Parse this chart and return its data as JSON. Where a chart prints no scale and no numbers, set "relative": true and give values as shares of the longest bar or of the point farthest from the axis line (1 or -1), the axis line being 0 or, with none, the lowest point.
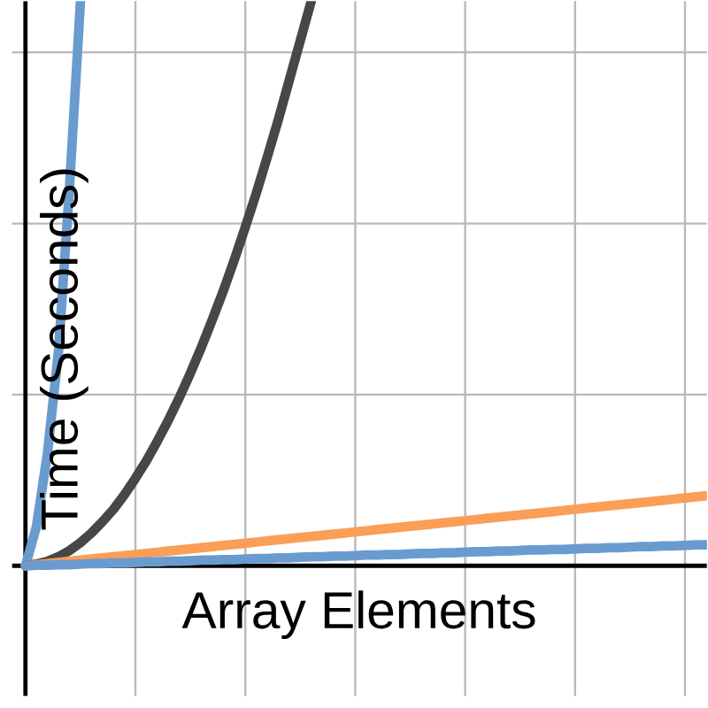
{
  "chart_data": {
    "type": "line",
    "relative": true,
    "xlabel": "Array Elements",
    "ylabel": "Time (Seconds)",
    "grid": true,
    "marker": "none",
    "line_style": "solid",
    "categories": [
      null,
      null,
      null,
      null,
      null,
      null,
      null,
      null,
      null,
      null,
      null,
      null,
      null,
      null,
      null,
      null,
      null,
      null,
      null,
      null,
      null,
      null,
      null,
      null,
      null,
      null,
      null,
      null,
      null,
      null,
      null,
      null,
      null,
      null,
      null,
      null,
      null,
      null,
      null,
      null,
      null,
      null,
      null,
      null,
      null,
      null,
      null,
      null,
      null,
      null,
      null,
      null,
      null,
      null,
      null,
      null,
      null,
      null,
      null,
      null,
      null,
      null,
      null
    ],
    "series": [
      {
        "color": "#6a9bcf",
        "values": [
          0,
          0.07,
          0.2,
          0.38,
          0.67,
          1,
          null,
          null,
          null,
          null,
          null,
          null,
          null,
          null,
          null,
          null,
          null,
          null,
          null,
          null,
          null,
          null,
          null,
          null,
          null,
          null,
          null,
          null,
          null,
          null,
          null,
          null,
          null,
          null,
          null,
          null,
          null,
          null,
          null,
          null,
          null,
          null,
          null,
          null,
          null,
          null,
          null,
          null,
          null,
          null,
          null,
          null,
          null,
          null,
          null,
          null,
          null,
          null,
          null,
          null,
          null,
          null,
          null
        ]
      },
      {
        "color": "#474747",
        "values": [
          0,
          0.003,
          0.008,
          0.016,
          0.027,
          0.041,
          0.058,
          0.078,
          0.1,
          0.126,
          0.155,
          0.186,
          0.221,
          0.258,
          0.298,
          0.341,
          0.387,
          0.436,
          0.487,
          0.542,
          0.6,
          0.66,
          0.724,
          0.79,
          0.86,
          0.93,
          1,
          null,
          null,
          null,
          null,
          null,
          null,
          null,
          null,
          null,
          null,
          null,
          null,
          null,
          null,
          null,
          null,
          null,
          null,
          null,
          null,
          null,
          null,
          null,
          null,
          null,
          null,
          null,
          null,
          null,
          null,
          null,
          null,
          null,
          null,
          null,
          null
        ]
      },
      {
        "color": "#fa9e58",
        "values": [
          0,
          0.002,
          0.004,
          0.006,
          0.008,
          0.01,
          0.012,
          0.014,
          0.016,
          0.018,
          0.02,
          0.022,
          0.024,
          0.026,
          0.028,
          0.03,
          0.032,
          0.034,
          0.036,
          0.038,
          0.04,
          0.042,
          0.044,
          0.046,
          0.048,
          0.05,
          0.052,
          0.054,
          0.056,
          0.058,
          0.06,
          0.062,
          0.064,
          0.066,
          0.068,
          0.07,
          0.072,
          0.074,
          0.076,
          0.078,
          0.08,
          0.082,
          0.084,
          0.086,
          0.088,
          0.09,
          0.092,
          0.094,
          0.096,
          0.098,
          0.1,
          0.102,
          0.104,
          0.106,
          0.108,
          0.11,
          0.112,
          0.114,
          0.116,
          0.118,
          0.12,
          0.122,
          0.124
        ]
      },
      {
        "color": "#6a9bcf",
        "values": [
          0,
          0.001,
          0.001,
          0.002,
          0.002,
          0.003,
          0.004,
          0.004,
          0.005,
          0.005,
          0.006,
          0.007,
          0.007,
          0.008,
          0.008,
          0.009,
          0.01,
          0.01,
          0.011,
          0.011,
          0.012,
          0.013,
          0.013,
          0.014,
          0.014,
          0.015,
          0.016,
          0.016,
          0.017,
          0.017,
          0.018,
          0.019,
          0.019,
          0.02,
          0.02,
          0.021,
          0.022,
          0.022,
          0.023,
          0.023,
          0.024,
          0.025,
          0.025,
          0.026,
          0.026,
          0.027,
          0.028,
          0.028,
          0.029,
          0.029,
          0.03,
          0.031,
          0.031,
          0.032,
          0.032,
          0.033,
          0.034,
          0.034,
          0.035,
          0.035,
          0.036,
          0.037,
          0.037
        ]
      }
    ]
  }
}
